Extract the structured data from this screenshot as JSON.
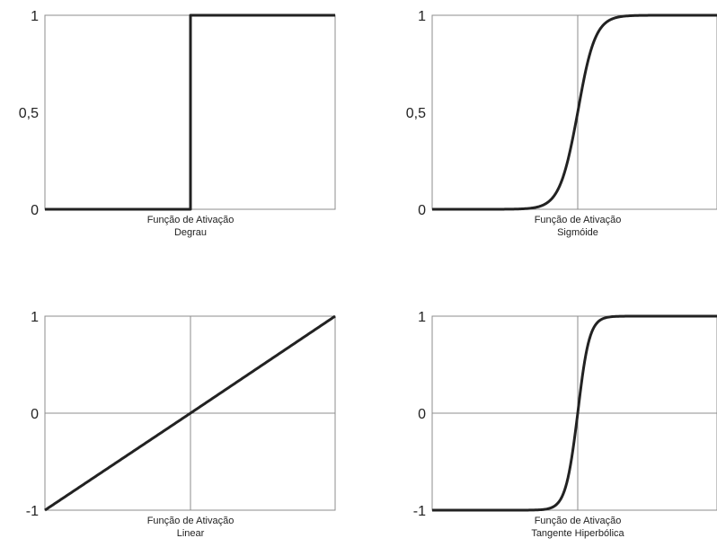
{
  "chart_data": [
    {
      "type": "line",
      "function": "step",
      "caption": [
        "Função de Ativação",
        "Degrau"
      ],
      "ylim": [
        0,
        1
      ],
      "yticks": [
        "0",
        "0,5",
        "1"
      ],
      "series": [
        {
          "x": [
            -1,
            0,
            0,
            1
          ],
          "y": [
            0,
            0,
            1,
            1
          ]
        }
      ],
      "grid": {
        "vertical_center": false,
        "horizontal_center": false
      }
    },
    {
      "type": "line",
      "function": "sigmoid",
      "caption": [
        "Função de Ativação",
        "Sigmóide"
      ],
      "ylim": [
        0,
        1
      ],
      "yticks": [
        "0",
        "0,5",
        "1"
      ],
      "series": [
        {
          "x": [
            -1,
            0,
            1
          ],
          "y": [
            0,
            0.5,
            1
          ]
        }
      ],
      "grid": {
        "vertical_center": true,
        "horizontal_center": false
      }
    },
    {
      "type": "line",
      "function": "linear",
      "caption": [
        "Função de Ativação",
        "Linear"
      ],
      "ylim": [
        -1,
        1
      ],
      "yticks": [
        "-1",
        "0",
        "1"
      ],
      "series": [
        {
          "x": [
            -1,
            0,
            1
          ],
          "y": [
            -1,
            0,
            1
          ]
        }
      ],
      "grid": {
        "vertical_center": true,
        "horizontal_center": true
      }
    },
    {
      "type": "line",
      "function": "tanh",
      "caption": [
        "Função de Ativação",
        "Tangente Hiperbólica"
      ],
      "ylim": [
        -1,
        1
      ],
      "yticks": [
        "-1",
        "0",
        "1"
      ],
      "series": [
        {
          "x": [
            -1,
            0,
            1
          ],
          "y": [
            -1,
            0,
            1
          ]
        }
      ],
      "grid": {
        "vertical_center": true,
        "horizontal_center": true
      }
    }
  ]
}
